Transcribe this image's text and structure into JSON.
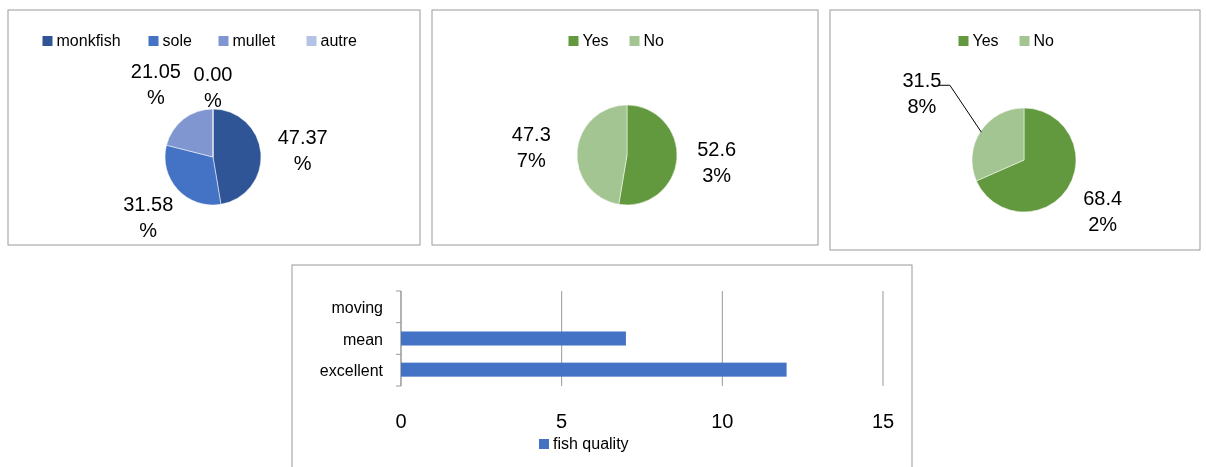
{
  "chart_data": [
    {
      "type": "pie",
      "categories": [
        "monkfish",
        "sole",
        "mullet",
        "autre"
      ],
      "values": [
        47.37,
        31.58,
        21.05,
        0.0
      ],
      "colors": [
        "#2f5597",
        "#4472c4",
        "#7f96d0",
        "#b4c2e5"
      ],
      "value_labels": [
        "47.37 %",
        "31.58 %",
        "21.05 %",
        "0.00 %"
      ],
      "legend": "top"
    },
    {
      "type": "pie",
      "categories": [
        "Yes",
        "No"
      ],
      "values": [
        52.63,
        47.37
      ],
      "colors": [
        "#62993e",
        "#a3c592"
      ],
      "value_labels": [
        "52.63%",
        "47.37%"
      ],
      "legend": "top"
    },
    {
      "type": "pie",
      "categories": [
        "Yes",
        "No"
      ],
      "values": [
        68.42,
        31.58
      ],
      "colors": [
        "#62993e",
        "#a3c592"
      ],
      "value_labels": [
        "68.42%",
        "31.58%"
      ],
      "legend": "top"
    },
    {
      "type": "bar",
      "orientation": "horizontal",
      "categories": [
        "moving",
        "mean",
        "excellent"
      ],
      "series": [
        {
          "name": "fish quality",
          "color": "#4472c4",
          "values": [
            0,
            7,
            12
          ]
        }
      ],
      "xlim": [
        0,
        15
      ],
      "xticks": [
        0,
        5,
        10,
        15
      ],
      "grid": "x",
      "legend": "bottom"
    }
  ]
}
